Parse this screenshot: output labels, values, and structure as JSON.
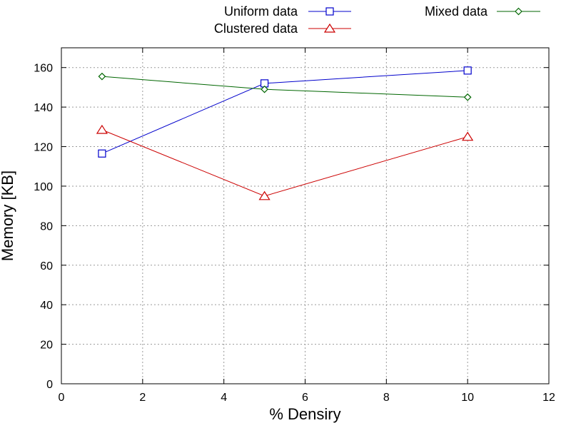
{
  "chart_data": {
    "type": "line",
    "title": "",
    "xlabel": "% Densiry",
    "ylabel": "Memory [KB]",
    "xlim": [
      0,
      12
    ],
    "ylim": [
      0,
      170
    ],
    "xticks": [
      0,
      2,
      4,
      6,
      8,
      10,
      12
    ],
    "yticks": [
      0,
      20,
      40,
      60,
      80,
      100,
      120,
      140,
      160
    ],
    "grid": true,
    "legend_position": "top",
    "series": [
      {
        "name": "Uniform data",
        "color": "#0000cc",
        "marker": "square",
        "x": [
          1,
          5,
          10
        ],
        "y": [
          116.5,
          152,
          158.5
        ]
      },
      {
        "name": "Clustered data",
        "color": "#cc0000",
        "marker": "triangle",
        "x": [
          1,
          5,
          10
        ],
        "y": [
          128.5,
          95,
          125
        ]
      },
      {
        "name": "Mixed data",
        "color": "#006600",
        "marker": "diamond",
        "x": [
          1,
          5,
          10
        ],
        "y": [
          155.5,
          149,
          145
        ]
      }
    ]
  }
}
